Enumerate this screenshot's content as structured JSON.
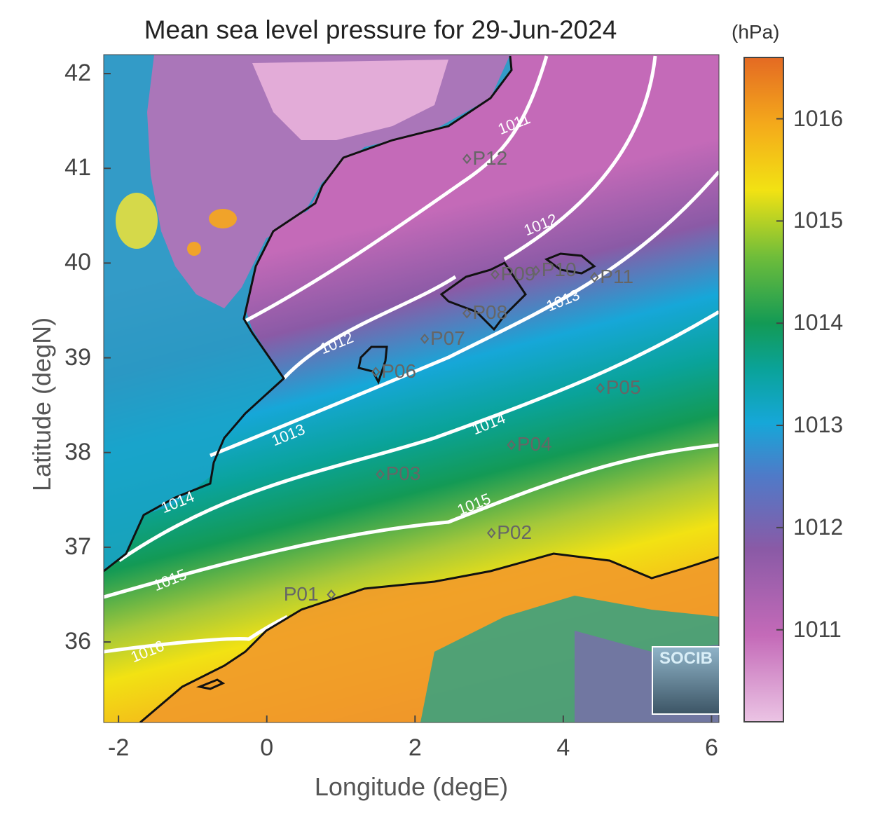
{
  "title": "Mean sea level pressure for 29-Jun-2024",
  "xlabel": "Longitude (degE)",
  "ylabel": "Latitude (degN)",
  "colorbar": {
    "unit": "(hPa)",
    "ticks": [
      "1016",
      "1015",
      "1014",
      "1013",
      "1012",
      "1011"
    ],
    "tick_values": [
      1016,
      1015,
      1014,
      1013,
      1012,
      1011
    ],
    "range": [
      1010.1,
      1016.6
    ],
    "colormap": [
      "#ebb8e0",
      "#c46ab8",
      "#8a5aa6",
      "#4f7ac8",
      "#16a7d8",
      "#0aa39a",
      "#139a55",
      "#6fbd3a",
      "#f2e213",
      "#f4a91b",
      "#e46a23"
    ]
  },
  "x_ticks": [
    "-2",
    "0",
    "2",
    "4",
    "6"
  ],
  "x_tick_values": [
    -2,
    0,
    2,
    4,
    6
  ],
  "y_ticks": [
    "42",
    "41",
    "40",
    "39",
    "38",
    "37",
    "36"
  ],
  "y_tick_values": [
    42,
    41,
    40,
    39,
    38,
    37,
    36
  ],
  "extent": {
    "lon": [
      -2.2,
      6.1
    ],
    "lat": [
      35.15,
      42.2
    ]
  },
  "contour_labels": [
    {
      "text": "1011",
      "lon": 3.35,
      "lat": 41.47
    },
    {
      "text": "1012",
      "lon": 3.7,
      "lat": 40.4
    },
    {
      "text": "1012",
      "lon": 0.95,
      "lat": 39.15
    },
    {
      "text": "1013",
      "lon": 4.0,
      "lat": 39.6
    },
    {
      "text": "1013",
      "lon": 0.3,
      "lat": 38.18
    },
    {
      "text": "1014",
      "lon": 3.0,
      "lat": 38.3
    },
    {
      "text": "1014",
      "lon": -1.2,
      "lat": 37.47
    },
    {
      "text": "1015",
      "lon": 2.8,
      "lat": 37.45
    },
    {
      "text": "1015",
      "lon": -1.3,
      "lat": 36.65
    },
    {
      "text": "1016",
      "lon": -1.6,
      "lat": 35.9
    }
  ],
  "stations": [
    {
      "name": "P01",
      "lon": 0.87,
      "lat": 36.5
    },
    {
      "name": "P02",
      "lon": 3.03,
      "lat": 37.15
    },
    {
      "name": "P03",
      "lon": 1.53,
      "lat": 37.77
    },
    {
      "name": "P04",
      "lon": 3.3,
      "lat": 38.08
    },
    {
      "name": "P05",
      "lon": 4.5,
      "lat": 38.68
    },
    {
      "name": "P06",
      "lon": 1.47,
      "lat": 38.85
    },
    {
      "name": "P07",
      "lon": 2.13,
      "lat": 39.2
    },
    {
      "name": "P08",
      "lon": 2.7,
      "lat": 39.47
    },
    {
      "name": "P09",
      "lon": 3.08,
      "lat": 39.88
    },
    {
      "name": "P10",
      "lon": 3.63,
      "lat": 39.92
    },
    {
      "name": "P11",
      "lon": 4.42,
      "lat": 39.85
    },
    {
      "name": "P12",
      "lon": 2.7,
      "lat": 41.1
    }
  ],
  "logo_text": "SOCIB"
}
